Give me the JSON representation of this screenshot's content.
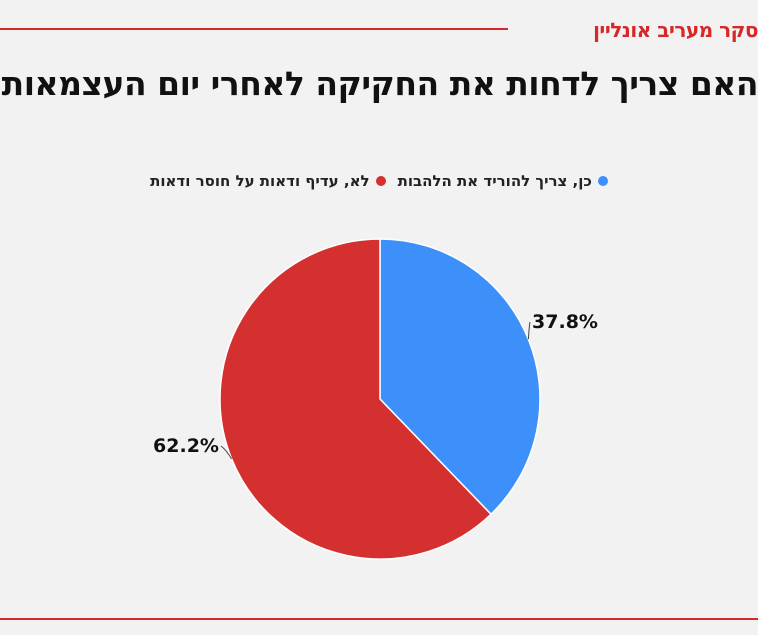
{
  "brand": "סקר מעריב אונליין",
  "colors": {
    "accent": "#d62828",
    "blue": "#3d8ff9",
    "red": "#d4302f"
  },
  "chart_data": {
    "type": "pie",
    "title": "האם צריך לדחות את החקיקה לאחרי יום העצמאות?",
    "legend_position": "top",
    "slices": [
      {
        "label": "כן, צריך להוריד את הלהבות",
        "value": 37.8,
        "display": "37.8%",
        "color": "#3d8ff9"
      },
      {
        "label": "לא, עדיף ודאות על חוסר ודאות",
        "value": 62.2,
        "display": "62.2%",
        "color": "#d4302f"
      }
    ]
  }
}
